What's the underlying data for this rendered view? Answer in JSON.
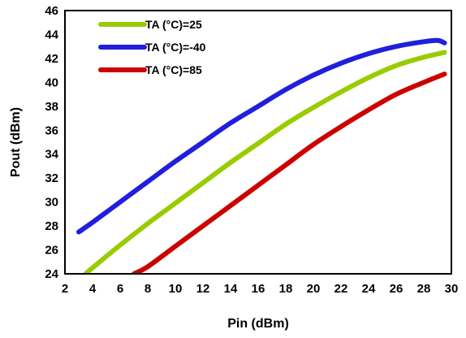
{
  "chart_data": {
    "type": "line",
    "xlabel": "Pin (dBm)",
    "ylabel": "Pout (dBm)",
    "xlim": [
      2,
      30
    ],
    "ylim": [
      24,
      46
    ],
    "xticks": [
      2,
      4,
      6,
      8,
      10,
      12,
      14,
      16,
      18,
      20,
      22,
      24,
      26,
      28,
      30
    ],
    "yticks": [
      24,
      26,
      28,
      30,
      32,
      34,
      36,
      38,
      40,
      42,
      44,
      46
    ],
    "grid": false,
    "legend_position": "top-left",
    "series": [
      {
        "name": "TA (°C)=25",
        "color": "#99CC00",
        "x": [
          3.5,
          4,
          6,
          8,
          10,
          12,
          14,
          16,
          18,
          20,
          22,
          24,
          26,
          28,
          29.5
        ],
        "y": [
          24.0,
          24.5,
          26.4,
          28.2,
          29.9,
          31.6,
          33.3,
          34.9,
          36.5,
          37.9,
          39.2,
          40.4,
          41.4,
          42.1,
          42.5
        ]
      },
      {
        "name": "TA (°C)=-40",
        "color": "#1F1FDD",
        "x": [
          3,
          4,
          6,
          8,
          10,
          12,
          14,
          16,
          18,
          20,
          22,
          24,
          26,
          28,
          29,
          29.5
        ],
        "y": [
          27.5,
          28.3,
          30.0,
          31.7,
          33.4,
          35.0,
          36.6,
          38.0,
          39.4,
          40.6,
          41.6,
          42.4,
          43.0,
          43.4,
          43.5,
          43.3
        ]
      },
      {
        "name": "TA (°C)=85",
        "color": "#CC0000",
        "x": [
          7,
          8,
          10,
          12,
          14,
          16,
          18,
          20,
          22,
          24,
          26,
          28,
          29.5
        ],
        "y": [
          24.0,
          24.6,
          26.3,
          28.0,
          29.7,
          31.4,
          33.1,
          34.8,
          36.3,
          37.7,
          39.0,
          40.0,
          40.7
        ]
      }
    ]
  }
}
